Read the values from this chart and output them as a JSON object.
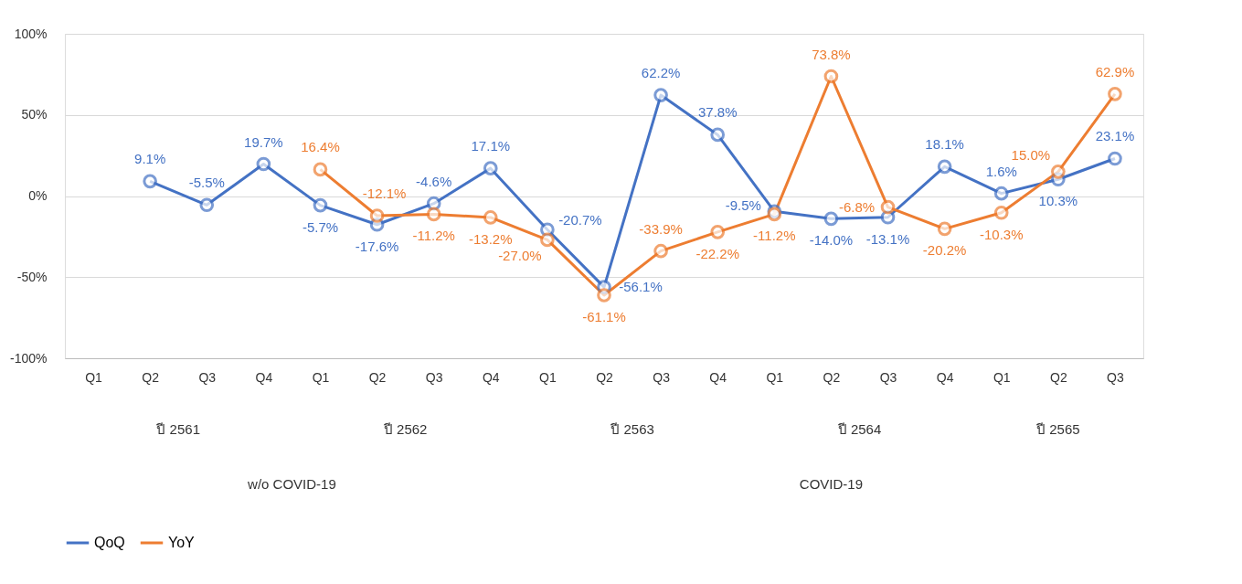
{
  "chart_data": {
    "type": "line",
    "categories": [
      "Q1",
      "Q2",
      "Q3",
      "Q4",
      "Q1",
      "Q2",
      "Q3",
      "Q4",
      "Q1",
      "Q2",
      "Q3",
      "Q4",
      "Q1",
      "Q2",
      "Q3",
      "Q4",
      "Q1",
      "Q2",
      "Q3"
    ],
    "series": [
      {
        "name": "QoQ",
        "color": "#4472c4",
        "values": [
          null,
          9.1,
          -5.5,
          19.7,
          -5.7,
          -17.6,
          -4.6,
          17.1,
          -20.7,
          -56.1,
          62.2,
          37.8,
          -9.5,
          -14.0,
          -13.1,
          18.1,
          1.6,
          10.3,
          23.1
        ],
        "value_labels": [
          null,
          "9.1%",
          "-5.5%",
          "19.7%",
          "-5.7%",
          "-17.6%",
          "-4.6%",
          "17.1%",
          "-20.7%",
          "-56.1%",
          "62.2%",
          "37.8%",
          "-9.5%",
          "-14.0%",
          "-13.1%",
          "18.1%",
          "1.6%",
          "10.3%",
          "23.1%"
        ]
      },
      {
        "name": "YoY",
        "color": "#ed7d31",
        "values": [
          null,
          null,
          null,
          null,
          16.4,
          -12.1,
          -11.2,
          -13.2,
          -27.0,
          -61.1,
          -33.9,
          -22.2,
          -11.2,
          73.8,
          -6.8,
          -20.2,
          -10.3,
          15.0,
          62.9
        ],
        "value_labels": [
          null,
          null,
          null,
          null,
          "16.4%",
          "-12.1%",
          "-11.2%",
          "-13.2%",
          "-27.0%",
          "-61.1%",
          "-33.9%",
          "-22.2%",
          "-11.2%",
          "73.8%",
          "-6.8%",
          "-20.2%",
          "-10.3%",
          "15.0%",
          "62.9%"
        ]
      }
    ],
    "annotations": [
      "ปี 2561",
      "ปี 2562",
      "ปี 2563",
      "ปี 2564",
      "ปี 2565",
      "w/o COVID-19",
      "COVID-19"
    ],
    "ylim": [
      -100,
      100
    ],
    "yticks": [
      {
        "value": -100,
        "label": "-100%"
      },
      {
        "value": -50,
        "label": "-50%"
      },
      {
        "value": 0,
        "label": "0%"
      },
      {
        "value": 50,
        "label": "50%"
      },
      {
        "value": 100,
        "label": "100%"
      }
    ],
    "grid": "y",
    "legend": "bottom",
    "marker": "circle",
    "line_style": "solid"
  }
}
